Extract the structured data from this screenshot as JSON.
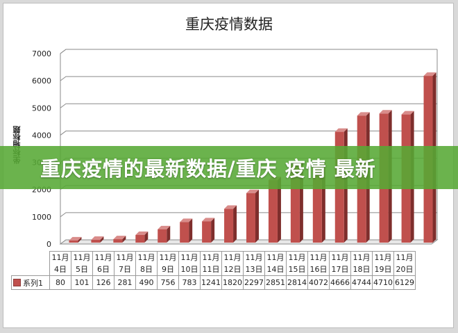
{
  "banner": {
    "text": "重庆疫情的最新数据/重庆 疫情 最新"
  },
  "chart_data": {
    "type": "bar",
    "title": "重庆疫情数据",
    "ylabel": "坐标轴标题",
    "xlabel": "",
    "ylim": [
      0,
      7000
    ],
    "yticks": [
      0,
      1000,
      2000,
      3000,
      4000,
      5000,
      6000,
      7000
    ],
    "grid": true,
    "categories": [
      [
        "11月",
        "4日"
      ],
      [
        "11月",
        "5日"
      ],
      [
        "11月",
        "6日"
      ],
      [
        "11月",
        "7日"
      ],
      [
        "11月",
        "8日"
      ],
      [
        "11月",
        "9日"
      ],
      [
        "11月",
        "10日"
      ],
      [
        "11月",
        "11日"
      ],
      [
        "11月",
        "12日"
      ],
      [
        "11月",
        "13日"
      ],
      [
        "11月",
        "14日"
      ],
      [
        "11月",
        "15日"
      ],
      [
        "11月",
        "16日"
      ],
      [
        "11月",
        "17日"
      ],
      [
        "11月",
        "18日"
      ],
      [
        "11月",
        "19日"
      ],
      [
        "11月",
        "20日"
      ]
    ],
    "series": [
      {
        "name": "系列1",
        "color": "#c0504d",
        "values": [
          80,
          101,
          126,
          281,
          490,
          756,
          783,
          1241,
          1820,
          2297,
          2851,
          2814,
          4072,
          4666,
          4744,
          4710,
          6129
        ]
      }
    ]
  }
}
